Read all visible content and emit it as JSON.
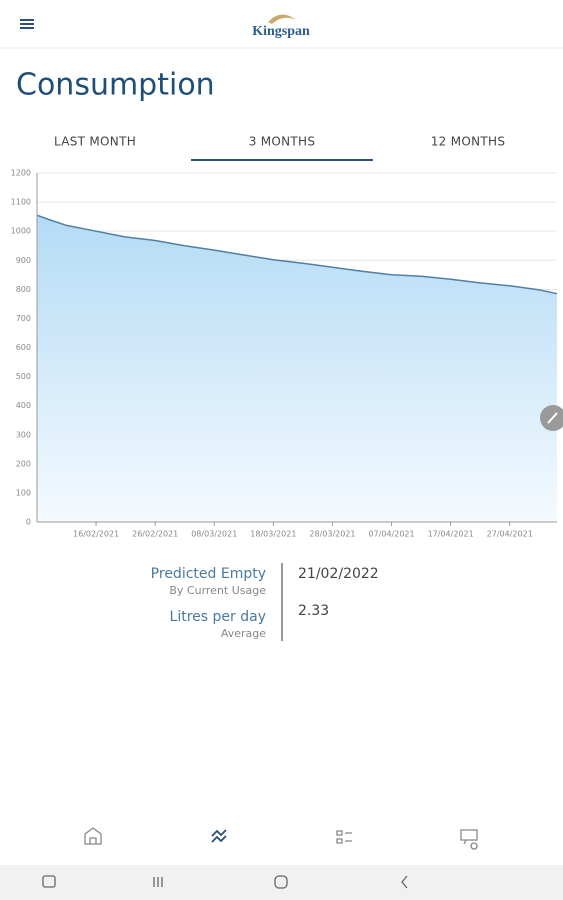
{
  "header": {
    "logo": "Kingspan",
    "title": "Consumption"
  },
  "tabs": [
    "LAST MONTH",
    "3 MONTHS",
    "12 MONTHS"
  ],
  "chart_data": {
    "type": "area",
    "color": "#4f7fa6",
    "grid": true,
    "x": [
      "06/02/2021",
      "08/02/2021",
      "11/02/2021",
      "16/02/2021",
      "21/02/2021",
      "26/02/2021",
      "03/03/2021",
      "08/03/2021",
      "13/03/2021",
      "18/03/2021",
      "23/03/2021",
      "28/03/2021",
      "02/04/2021",
      "07/04/2021",
      "12/04/2021",
      "17/04/2021",
      "22/04/2021",
      "27/04/2021",
      "02/05/2021",
      "05/05/2021"
    ],
    "values": [
      1055,
      1040,
      1020,
      1000,
      980,
      968,
      950,
      935,
      918,
      902,
      890,
      876,
      862,
      850,
      845,
      835,
      822,
      812,
      798,
      785
    ],
    "xlim": [
      "06/02/2021",
      "05/05/2021"
    ],
    "xticks": [
      "16/02/2021",
      "26/02/2021",
      "08/03/2021",
      "18/03/2021",
      "28/03/2021",
      "07/04/2021",
      "17/04/2021",
      "27/04/2021"
    ],
    "ylim": [
      0,
      1200
    ],
    "yticks": [
      0,
      100,
      200,
      300,
      400,
      500,
      600,
      700,
      800,
      900,
      1000,
      1100,
      1200
    ]
  },
  "stats": [
    {
      "label": "Predicted Empty",
      "sublabel": "By Current Usage",
      "value": "21/02/2022"
    },
    {
      "label": "Litres per day",
      "sublabel": "Average",
      "value": "2.33"
    }
  ]
}
